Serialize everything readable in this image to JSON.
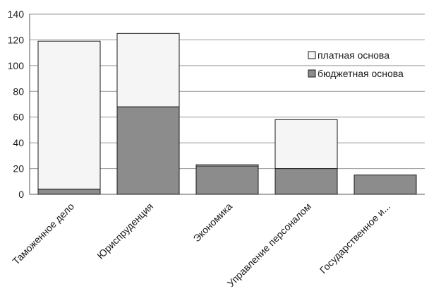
{
  "chart_data": {
    "type": "bar",
    "stacked": true,
    "categories": [
      "Таможенное дело",
      "Юриспруденция",
      "Экономика",
      "Управление персоналом",
      "Государственное и..."
    ],
    "series": [
      {
        "name": "бюджетная основа",
        "values": [
          4,
          68,
          22,
          20,
          15
        ],
        "color": "#8c8c8c"
      },
      {
        "name": "платная основа",
        "values": [
          115,
          57,
          1,
          38,
          0
        ],
        "color": "#f5f5f5"
      }
    ],
    "y_ticks": [
      0,
      20,
      40,
      60,
      80,
      100,
      120,
      140
    ],
    "ylim": [
      0,
      140
    ],
    "grid": true,
    "legend_position": "right",
    "legend_order": [
      "платная основа",
      "бюджетная основа"
    ]
  }
}
